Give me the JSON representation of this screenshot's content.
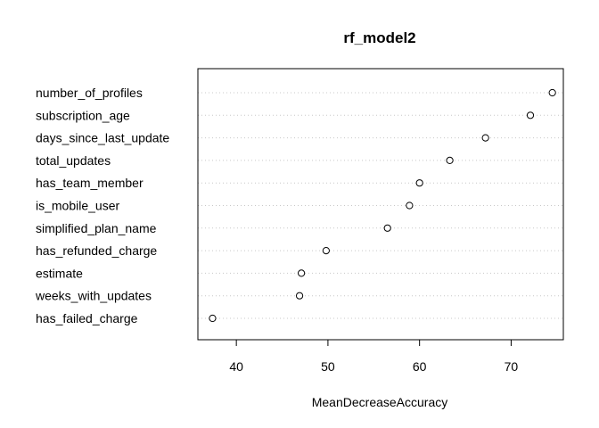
{
  "chart_data": {
    "type": "scatter",
    "subtype": "dotchart",
    "title": "rf_model2",
    "xlabel": "MeanDecreaseAccuracy",
    "ylabel": "",
    "xlim": [
      35.8,
      75.7
    ],
    "xticks": [
      40,
      50,
      60,
      70
    ],
    "grid": "dotted-horizontal",
    "point_style": "open-circle",
    "categories": [
      "number_of_profiles",
      "subscription_age",
      "days_since_last_update",
      "total_updates",
      "has_team_member",
      "is_mobile_user",
      "simplified_plan_name",
      "has_refunded_charge",
      "estimate",
      "weeks_with_updates",
      "has_failed_charge"
    ],
    "values": [
      74.5,
      72.1,
      67.2,
      63.3,
      60.0,
      58.9,
      56.5,
      49.8,
      47.1,
      46.9,
      37.4
    ]
  }
}
